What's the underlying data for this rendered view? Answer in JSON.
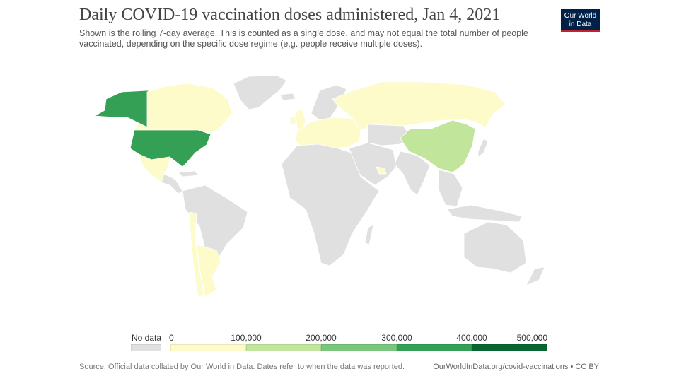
{
  "header": {
    "title": "Daily COVID-19 vaccination doses administered, Jan 4, 2021",
    "subtitle": "Shown is the rolling 7-day average. This is counted as a single dose, and may not equal the total number of people vaccinated, depending on the specific dose regime (e.g. people receive multiple doses).",
    "logo_line1": "Our World",
    "logo_line2": "in Data"
  },
  "legend": {
    "no_data_label": "No data",
    "no_data_color": "#e0e0e0",
    "ticks": [
      "0",
      "100,000",
      "200,000",
      "300,000",
      "400,000",
      "500,000"
    ],
    "bins": [
      {
        "min": 0,
        "max": 100000,
        "color": "#fdfbc9"
      },
      {
        "min": 100000,
        "max": 200000,
        "color": "#c2e59c"
      },
      {
        "min": 200000,
        "max": 300000,
        "color": "#78c77d"
      },
      {
        "min": 300000,
        "max": 400000,
        "color": "#34a055"
      },
      {
        "min": 400000,
        "max": 500000,
        "color": "#08652f"
      }
    ]
  },
  "map_data": {
    "regions": [
      {
        "id": "alaska",
        "bin": 3
      },
      {
        "id": "canada",
        "bin": 0
      },
      {
        "id": "usa",
        "bin": 3
      },
      {
        "id": "mexico",
        "bin": 0
      },
      {
        "id": "greenland",
        "bin": null
      },
      {
        "id": "central-america",
        "bin": null
      },
      {
        "id": "caribbean",
        "bin": null
      },
      {
        "id": "south-america",
        "bin": null
      },
      {
        "id": "chile",
        "bin": 0
      },
      {
        "id": "argentina",
        "bin": 0
      },
      {
        "id": "europe",
        "bin": 0
      },
      {
        "id": "uk",
        "bin": 0
      },
      {
        "id": "ireland",
        "bin": 0
      },
      {
        "id": "iceland",
        "bin": null
      },
      {
        "id": "scandinavia",
        "bin": null
      },
      {
        "id": "russia",
        "bin": 0
      },
      {
        "id": "israel",
        "bin": 0
      },
      {
        "id": "bahrain-uae",
        "bin": 0
      },
      {
        "id": "china",
        "bin": 1
      },
      {
        "id": "africa",
        "bin": null
      },
      {
        "id": "madagascar",
        "bin": null
      },
      {
        "id": "middle-east",
        "bin": null
      },
      {
        "id": "central-asia",
        "bin": null
      },
      {
        "id": "india",
        "bin": null
      },
      {
        "id": "southeast-asia",
        "bin": null
      },
      {
        "id": "japan",
        "bin": null
      },
      {
        "id": "indonesia",
        "bin": null
      },
      {
        "id": "australia",
        "bin": null
      },
      {
        "id": "new-zealand",
        "bin": null
      }
    ]
  },
  "footer": {
    "source": "Source: Official data collated by Our World in Data. Dates refer to when the data was reported.",
    "url": "OurWorldInData.org/covid-vaccinations • CC BY"
  }
}
